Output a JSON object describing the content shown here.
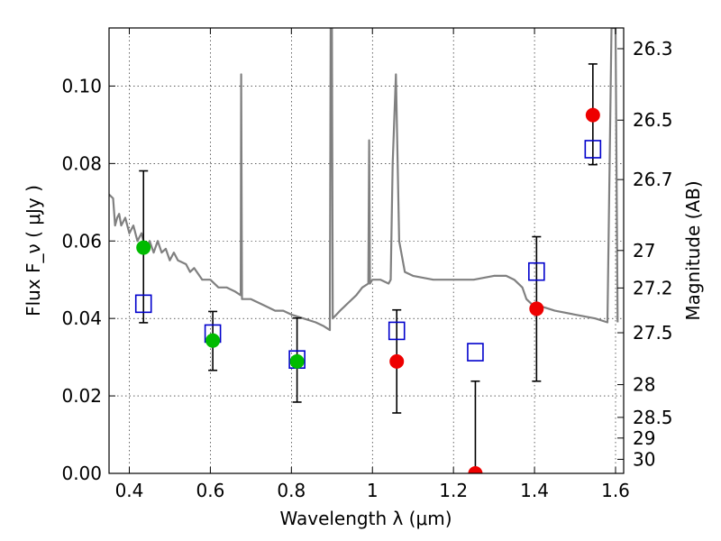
{
  "chart_data": {
    "type": "scatter",
    "title": "",
    "xlabel": "Wavelength  λ (μm)",
    "ylabel": "Flux  F_ν  ( μJy )",
    "ylabel_right": "Magnitude (AB)",
    "xlim": [
      0.35,
      1.62
    ],
    "ylim": [
      0.0,
      0.115
    ],
    "grid": true,
    "x_ticks": [
      {
        "value": 0.4,
        "label": "0.4"
      },
      {
        "value": 0.6,
        "label": "0.6"
      },
      {
        "value": 0.8,
        "label": "0.8"
      },
      {
        "value": 1.0,
        "label": "1"
      },
      {
        "value": 1.2,
        "label": "1.2"
      },
      {
        "value": 1.4,
        "label": "1.4"
      },
      {
        "value": 1.6,
        "label": "1.6"
      }
    ],
    "y_ticks": [
      {
        "value": 0.0,
        "label": "0.00"
      },
      {
        "value": 0.02,
        "label": "0.02"
      },
      {
        "value": 0.04,
        "label": "0.04"
      },
      {
        "value": 0.06,
        "label": "0.06"
      },
      {
        "value": 0.08,
        "label": "0.08"
      },
      {
        "value": 0.1,
        "label": "0.10"
      }
    ],
    "right_ticks": [
      {
        "mag": 26.3,
        "label": "26.3"
      },
      {
        "mag": 26.5,
        "label": "26.5"
      },
      {
        "mag": 26.7,
        "label": "26.7"
      },
      {
        "mag": 27.0,
        "label": "27"
      },
      {
        "mag": 27.2,
        "label": "27.2"
      },
      {
        "mag": 27.5,
        "label": "27.5"
      },
      {
        "mag": 28.0,
        "label": "28"
      },
      {
        "mag": 28.5,
        "label": "28.5"
      },
      {
        "mag": 29.0,
        "label": "29"
      },
      {
        "mag": 30.0,
        "label": "30"
      }
    ],
    "series": [
      {
        "kind": "model-spectrum",
        "color": "#808080",
        "points": [
          [
            0.35,
            0.072
          ],
          [
            0.36,
            0.071
          ],
          [
            0.365,
            0.064
          ],
          [
            0.37,
            0.066
          ],
          [
            0.375,
            0.067
          ],
          [
            0.38,
            0.064
          ],
          [
            0.39,
            0.066
          ],
          [
            0.4,
            0.062
          ],
          [
            0.41,
            0.064
          ],
          [
            0.42,
            0.06
          ],
          [
            0.43,
            0.062
          ],
          [
            0.44,
            0.058
          ],
          [
            0.45,
            0.06
          ],
          [
            0.46,
            0.057
          ],
          [
            0.47,
            0.06
          ],
          [
            0.48,
            0.057
          ],
          [
            0.49,
            0.058
          ],
          [
            0.5,
            0.055
          ],
          [
            0.51,
            0.057
          ],
          [
            0.52,
            0.055
          ],
          [
            0.54,
            0.054
          ],
          [
            0.55,
            0.052
          ],
          [
            0.56,
            0.053
          ],
          [
            0.58,
            0.05
          ],
          [
            0.6,
            0.05
          ],
          [
            0.62,
            0.048
          ],
          [
            0.64,
            0.048
          ],
          [
            0.66,
            0.047
          ],
          [
            0.675,
            0.046
          ],
          [
            0.676,
            0.103
          ],
          [
            0.678,
            0.045
          ],
          [
            0.7,
            0.045
          ],
          [
            0.72,
            0.044
          ],
          [
            0.74,
            0.043
          ],
          [
            0.76,
            0.042
          ],
          [
            0.78,
            0.042
          ],
          [
            0.8,
            0.041
          ],
          [
            0.83,
            0.04
          ],
          [
            0.86,
            0.039
          ],
          [
            0.88,
            0.038
          ],
          [
            0.895,
            0.037
          ],
          [
            0.897,
            0.115
          ],
          [
            0.9,
            0.115
          ],
          [
            0.902,
            0.04
          ],
          [
            0.92,
            0.042
          ],
          [
            0.94,
            0.044
          ],
          [
            0.96,
            0.046
          ],
          [
            0.975,
            0.048
          ],
          [
            0.99,
            0.049
          ],
          [
            0.992,
            0.086
          ],
          [
            0.994,
            0.049
          ],
          [
            1.0,
            0.05
          ],
          [
            1.02,
            0.05
          ],
          [
            1.04,
            0.049
          ],
          [
            1.045,
            0.05
          ],
          [
            1.05,
            0.08
          ],
          [
            1.058,
            0.103
          ],
          [
            1.066,
            0.06
          ],
          [
            1.08,
            0.052
          ],
          [
            1.1,
            0.051
          ],
          [
            1.15,
            0.05
          ],
          [
            1.2,
            0.05
          ],
          [
            1.25,
            0.05
          ],
          [
            1.3,
            0.051
          ],
          [
            1.33,
            0.051
          ],
          [
            1.35,
            0.05
          ],
          [
            1.37,
            0.048
          ],
          [
            1.38,
            0.045
          ],
          [
            1.4,
            0.043
          ],
          [
            1.42,
            0.043
          ],
          [
            1.45,
            0.042
          ],
          [
            1.5,
            0.041
          ],
          [
            1.55,
            0.04
          ],
          [
            1.58,
            0.039
          ],
          [
            1.59,
            0.115
          ],
          [
            1.6,
            0.115
          ],
          [
            1.605,
            0.039
          ]
        ]
      },
      {
        "name": "green-points",
        "marker": "circle",
        "color": "#00bb00",
        "points": [
          {
            "x": 0.435,
            "y": 0.0583,
            "err_low": 0.0389,
            "err_high": 0.0781
          },
          {
            "x": 0.606,
            "y": 0.0343,
            "err_low": 0.0266,
            "err_high": 0.0418
          },
          {
            "x": 0.814,
            "y": 0.0289,
            "err_low": 0.0184,
            "err_high": 0.0401
          }
        ]
      },
      {
        "name": "red-points",
        "marker": "circle",
        "color": "#ee0000",
        "points": [
          {
            "x": 1.06,
            "y": 0.0289,
            "err_low": 0.0156,
            "err_high": 0.0422
          },
          {
            "x": 1.254,
            "y": 0.0,
            "err_low": 0.0,
            "err_high": 0.0238
          },
          {
            "x": 1.405,
            "y": 0.0425,
            "err_low": 0.0238,
            "err_high": 0.0611
          },
          {
            "x": 1.544,
            "y": 0.0925,
            "err_low": 0.0797,
            "err_high": 0.1057
          }
        ]
      },
      {
        "name": "model-bands",
        "marker": "open-square",
        "color": "#0000cc",
        "points": [
          {
            "x": 0.435,
            "y": 0.0438
          },
          {
            "x": 0.606,
            "y": 0.0361
          },
          {
            "x": 0.814,
            "y": 0.0294
          },
          {
            "x": 1.06,
            "y": 0.0368
          },
          {
            "x": 1.254,
            "y": 0.0313
          },
          {
            "x": 1.405,
            "y": 0.0521
          },
          {
            "x": 1.544,
            "y": 0.0837
          }
        ]
      }
    ]
  }
}
